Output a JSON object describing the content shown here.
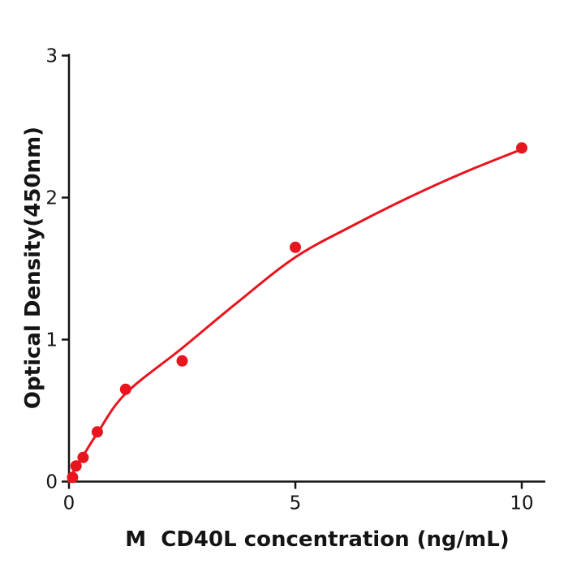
{
  "figure": {
    "background": "#ffffff",
    "axis_color": "#141414",
    "accent_red": "#e8141e"
  },
  "chart_data": {
    "type": "scatter",
    "title": "",
    "xlabel": "M  CD40L concentration (ng/mL)",
    "ylabel": "Optical Density(450nm)",
    "xlim": [
      0,
      10.5
    ],
    "ylim": [
      0,
      3
    ],
    "x_ticks": [
      0,
      5,
      10
    ],
    "y_ticks": [
      0,
      1,
      2,
      3
    ],
    "grid": false,
    "legend": null,
    "series": [
      {
        "name": "standard-points",
        "type": "scatter",
        "marker": "circle",
        "color": "#e8141e",
        "x": [
          0.078,
          0.156,
          0.3125,
          0.625,
          1.25,
          2.5,
          5,
          10
        ],
        "y": [
          0.03,
          0.11,
          0.17,
          0.35,
          0.65,
          0.85,
          1.65,
          2.35
        ]
      },
      {
        "name": "fitted-curve",
        "type": "line",
        "color": "#e8141e",
        "x": [
          0,
          0.16,
          0.31,
          0.625,
          1.25,
          2.5,
          3.75,
          5,
          6.25,
          7.5,
          8.75,
          10
        ],
        "y": [
          0,
          0.11,
          0.18,
          0.34,
          0.62,
          0.94,
          1.27,
          1.58,
          1.8,
          2.0,
          2.18,
          2.34
        ]
      }
    ]
  }
}
